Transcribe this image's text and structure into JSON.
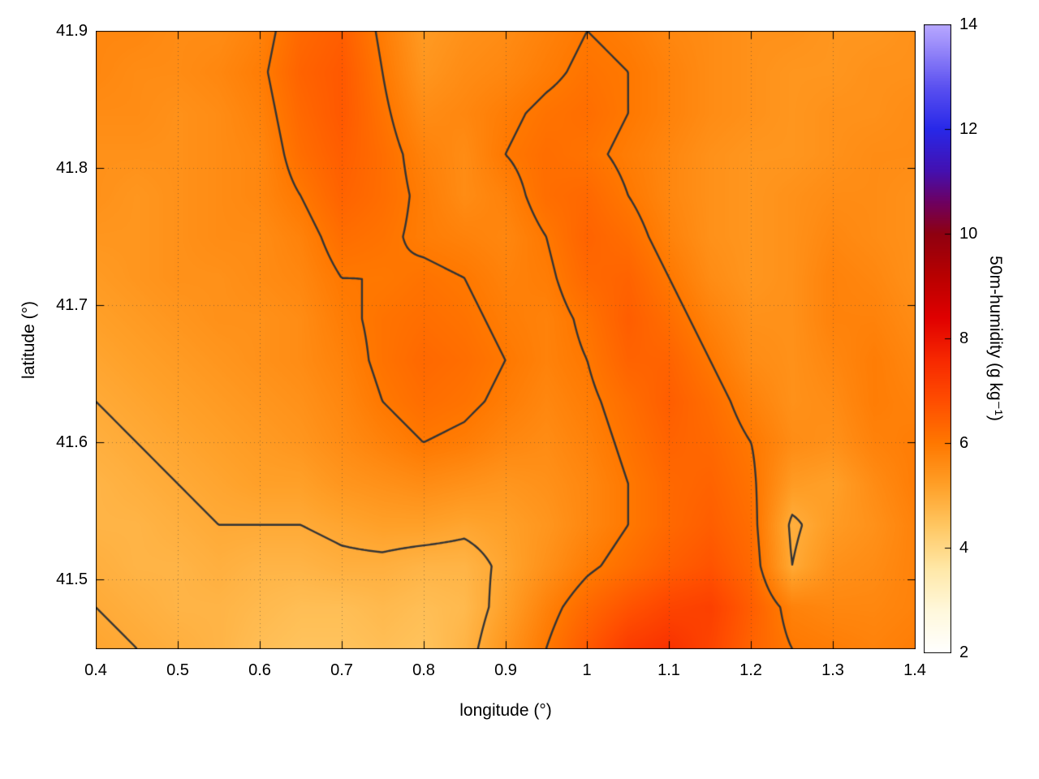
{
  "figure": {
    "background": "#ffffff"
  },
  "chart_data": {
    "type": "heatmap",
    "title": "",
    "xlabel": "longitude (°)",
    "ylabel": "latitude (°)",
    "xlim": [
      0.4,
      1.4
    ],
    "ylim": [
      41.45,
      41.9
    ],
    "grid": true,
    "xticks": [
      0.4,
      0.5,
      0.6,
      0.7,
      0.8,
      0.9,
      1.0,
      1.1,
      1.2,
      1.3,
      1.4
    ],
    "xtick_labels": [
      "0.4",
      "0.5",
      "0.6",
      "0.7",
      "0.8",
      "0.9",
      "1",
      "1.1",
      "1.2",
      "1.3",
      "1.4"
    ],
    "yticks": [
      41.5,
      41.6,
      41.7,
      41.8,
      41.9
    ],
    "ytick_labels": [
      "41.5",
      "41.6",
      "41.7",
      "41.8",
      "41.9"
    ],
    "colorbar": {
      "label": "50m-humidity (g kg⁻¹)",
      "min": 2,
      "max": 14,
      "ticks": [
        2,
        4,
        6,
        8,
        10,
        12,
        14
      ],
      "tick_labels": [
        "2",
        "4",
        "6",
        "8",
        "10",
        "12",
        "14"
      ],
      "palette": [
        [
          2.0,
          "#ffffff"
        ],
        [
          2.8,
          "#fff8dc"
        ],
        [
          3.6,
          "#ffe8a8"
        ],
        [
          4.4,
          "#ffc864"
        ],
        [
          5.2,
          "#ffa028"
        ],
        [
          6.0,
          "#ff7800"
        ],
        [
          6.8,
          "#ff4e00"
        ],
        [
          7.6,
          "#f72800"
        ],
        [
          8.4,
          "#e00000"
        ],
        [
          9.2,
          "#b80000"
        ],
        [
          10.0,
          "#8f0010"
        ],
        [
          10.6,
          "#6e0060"
        ],
        [
          11.2,
          "#4410b0"
        ],
        [
          12.0,
          "#2828e8"
        ],
        [
          12.8,
          "#5a50f0"
        ],
        [
          13.6,
          "#9b8cfa"
        ],
        [
          14.0,
          "#b8a8ff"
        ]
      ]
    },
    "contour_levels": [
      5.0,
      6.0
    ],
    "contour_color": "#343434",
    "grid_x": {
      "start": 0.4,
      "step": 0.05,
      "n": 21
    },
    "grid_y": {
      "start": 41.45,
      "step": 0.03,
      "n": 16
    },
    "values_rows_top_to_bottom": [
      [
        5.7,
        5.7,
        5.6,
        5.6,
        5.8,
        6.3,
        6.5,
        5.9,
        5.3,
        5.5,
        5.6,
        5.8,
        6.0,
        5.9,
        5.7,
        5.6,
        5.5,
        5.5,
        5.4,
        5.4,
        5.5
      ],
      [
        5.7,
        5.6,
        5.6,
        5.7,
        5.9,
        6.4,
        6.6,
        6.0,
        5.4,
        5.6,
        5.7,
        5.9,
        6.1,
        6.0,
        5.8,
        5.6,
        5.5,
        5.4,
        5.4,
        5.5,
        5.5
      ],
      [
        5.6,
        5.6,
        5.5,
        5.6,
        5.8,
        6.3,
        6.6,
        6.1,
        5.6,
        5.7,
        5.9,
        6.1,
        6.2,
        6.0,
        5.8,
        5.6,
        5.5,
        5.4,
        5.5,
        5.5,
        5.6
      ],
      [
        5.5,
        5.5,
        5.5,
        5.6,
        5.7,
        6.2,
        6.5,
        6.2,
        5.8,
        5.6,
        6.0,
        6.2,
        6.1,
        5.9,
        5.7,
        5.5,
        5.4,
        5.4,
        5.5,
        5.6,
        5.6
      ],
      [
        5.5,
        5.4,
        5.5,
        5.6,
        5.7,
        6.0,
        6.4,
        6.2,
        5.9,
        5.6,
        5.8,
        6.2,
        6.3,
        6.0,
        5.7,
        5.5,
        5.4,
        5.5,
        5.6,
        5.6,
        5.5
      ],
      [
        5.4,
        5.4,
        5.5,
        5.6,
        5.6,
        5.8,
        6.2,
        6.1,
        5.9,
        5.8,
        5.7,
        6.0,
        6.4,
        6.2,
        5.8,
        5.5,
        5.4,
        5.5,
        5.7,
        5.6,
        5.5
      ],
      [
        5.3,
        5.4,
        5.5,
        5.5,
        5.6,
        5.7,
        6.0,
        6.0,
        6.1,
        6.0,
        5.8,
        5.9,
        6.3,
        6.4,
        6.0,
        5.6,
        5.4,
        5.5,
        5.8,
        5.7,
        5.5
      ],
      [
        5.2,
        5.3,
        5.4,
        5.5,
        5.5,
        5.6,
        5.9,
        6.1,
        6.2,
        6.1,
        5.9,
        5.8,
        6.1,
        6.5,
        6.2,
        5.8,
        5.5,
        5.5,
        5.8,
        5.8,
        5.6
      ],
      [
        5.1,
        5.2,
        5.3,
        5.4,
        5.5,
        5.6,
        5.8,
        6.1,
        6.3,
        6.2,
        6.0,
        5.8,
        6.0,
        6.4,
        6.4,
        6.0,
        5.6,
        5.5,
        5.7,
        5.9,
        5.7
      ],
      [
        5.0,
        5.1,
        5.2,
        5.3,
        5.4,
        5.5,
        5.7,
        6.0,
        6.2,
        6.1,
        5.9,
        5.7,
        5.9,
        6.2,
        6.5,
        6.2,
        5.8,
        5.5,
        5.6,
        5.9,
        5.8
      ],
      [
        4.9,
        5.0,
        5.1,
        5.2,
        5.3,
        5.4,
        5.6,
        5.8,
        6.0,
        5.9,
        5.7,
        5.6,
        5.8,
        6.1,
        6.4,
        6.3,
        6.0,
        5.6,
        5.5,
        5.8,
        5.9
      ],
      [
        4.8,
        4.9,
        5.0,
        5.1,
        5.2,
        5.2,
        5.4,
        5.5,
        5.6,
        5.5,
        5.4,
        5.5,
        5.7,
        6.0,
        6.3,
        6.4,
        6.1,
        5.3,
        5.2,
        5.6,
        5.9
      ],
      [
        4.8,
        4.8,
        4.9,
        5.0,
        5.0,
        5.0,
        5.1,
        5.2,
        5.2,
        5.1,
        5.2,
        5.4,
        5.7,
        6.0,
        6.3,
        6.5,
        6.2,
        4.9,
        5.3,
        5.5,
        5.8
      ],
      [
        4.9,
        4.8,
        4.8,
        4.9,
        4.8,
        4.8,
        4.9,
        4.9,
        4.8,
        4.8,
        5.1,
        5.5,
        5.9,
        6.2,
        6.5,
        6.7,
        6.3,
        5.0,
        5.5,
        5.6,
        5.8
      ],
      [
        5.0,
        4.9,
        4.8,
        4.8,
        4.7,
        4.6,
        4.6,
        4.7,
        4.6,
        4.7,
        5.2,
        5.8,
        6.3,
        6.7,
        7.0,
        7.1,
        6.5,
        5.8,
        5.7,
        5.7,
        5.8
      ],
      [
        5.1,
        5.0,
        4.9,
        4.8,
        4.6,
        4.5,
        4.5,
        4.6,
        4.5,
        4.8,
        5.4,
        6.0,
        6.6,
        7.2,
        7.4,
        7.0,
        6.4,
        6.0,
        5.9,
        5.8,
        5.9
      ]
    ]
  }
}
